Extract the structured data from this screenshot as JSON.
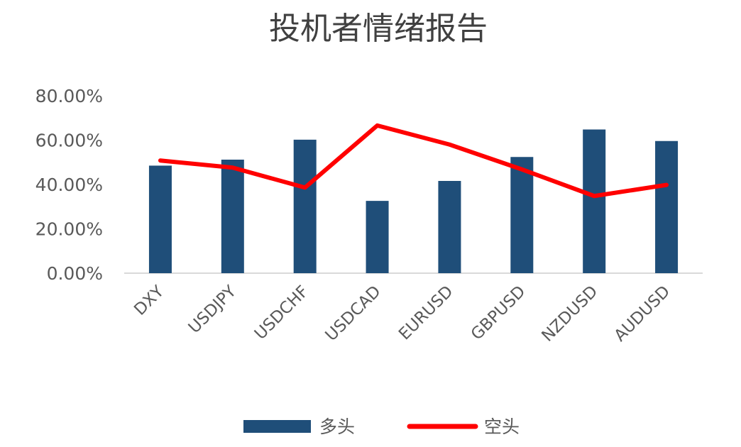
{
  "chart_data": {
    "type": "bar",
    "title": "投机者情绪报告",
    "categories": [
      "DXY",
      "USDJPY",
      "USDCHF",
      "USDCAD",
      "EURUSD",
      "GBPUSD",
      "NZDUSD",
      "AUDUSD"
    ],
    "series": [
      {
        "name": "多头",
        "type": "bar",
        "color": "#1f4e79",
        "values": [
          48.5,
          51.2,
          60.2,
          32.6,
          41.6,
          52.4,
          64.8,
          59.6
        ]
      },
      {
        "name": "空头",
        "type": "line",
        "color": "#ff0000",
        "values": [
          50.8,
          47.6,
          38.6,
          66.6,
          58.0,
          46.8,
          34.8,
          39.8
        ]
      }
    ],
    "ylim": [
      0,
      80
    ],
    "yticks": [
      "0.00%",
      "20.00%",
      "40.00%",
      "60.00%",
      "80.00%"
    ],
    "ytick_values": [
      0,
      20,
      40,
      60,
      80
    ],
    "grid": false,
    "legend_position": "bottom"
  }
}
